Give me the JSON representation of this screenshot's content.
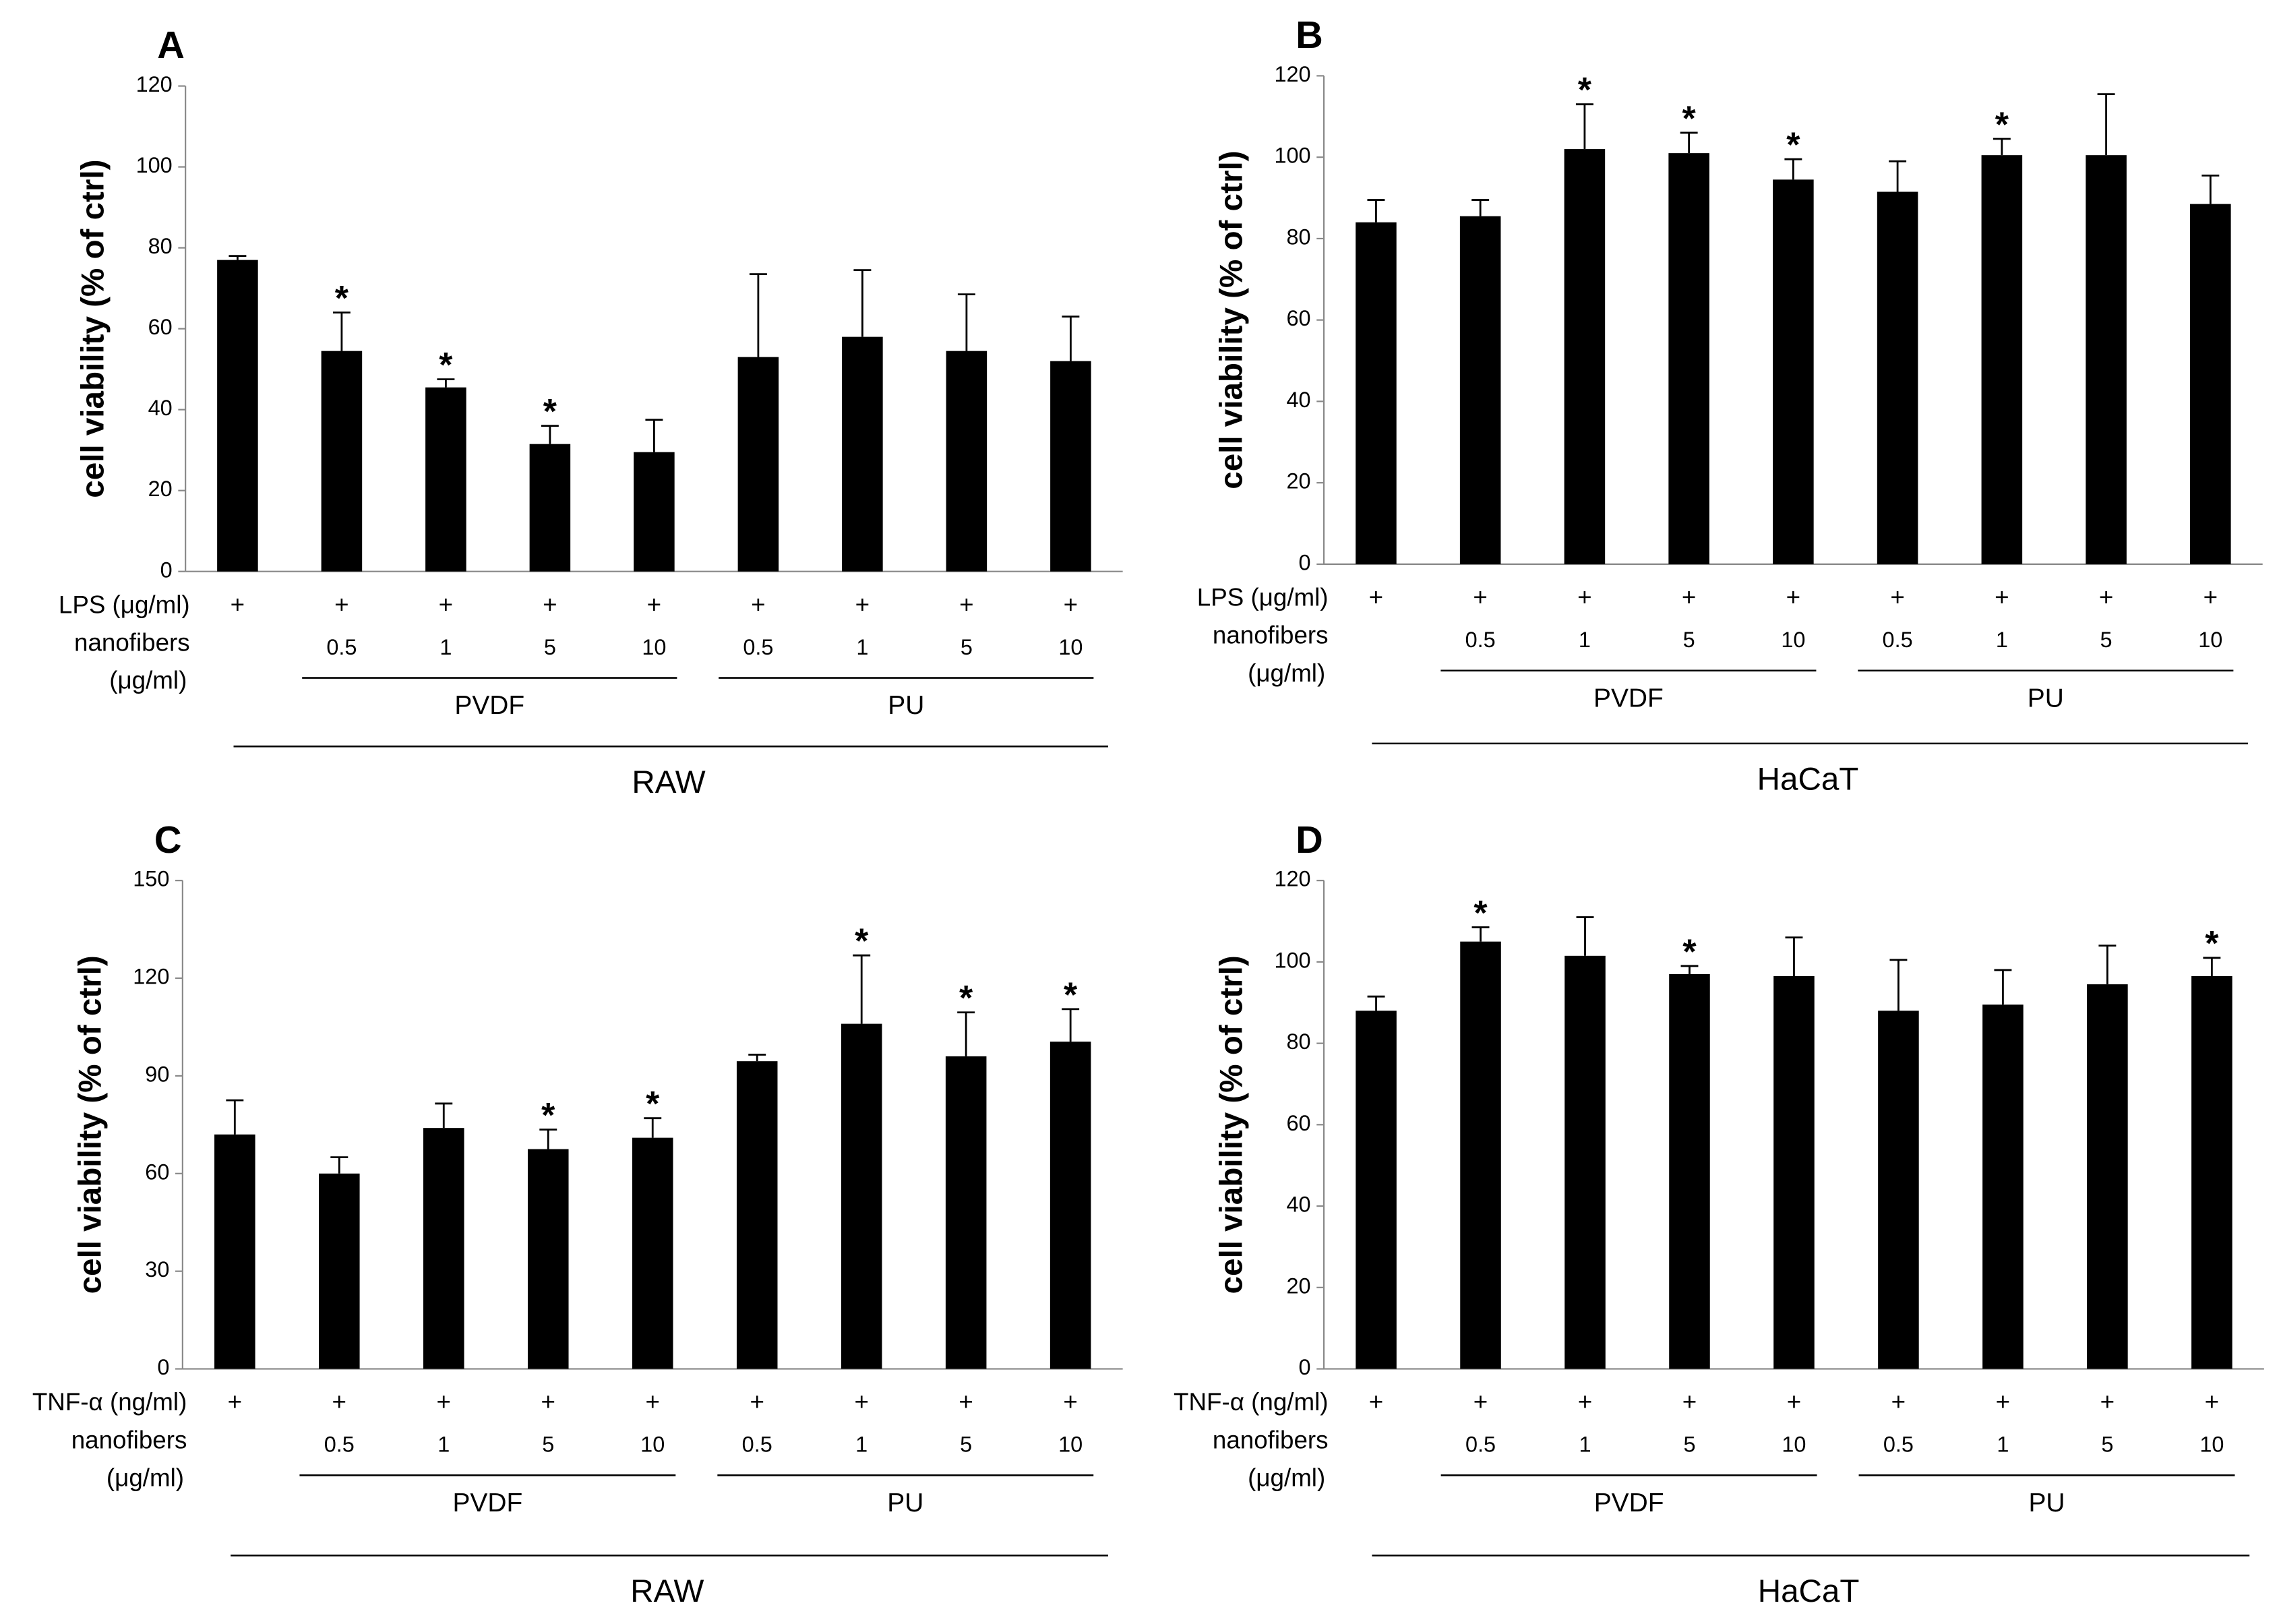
{
  "chart_data": [
    {
      "type": "bar",
      "panel": "A",
      "ylabel": "cell viability  (% of ctrl)",
      "ylim": [
        0,
        120
      ],
      "yticks": [
        0,
        20,
        40,
        60,
        80,
        100,
        120
      ],
      "color": "#000000",
      "treatment_label": "LPS (μg/ml)",
      "fiber_label": "nanofibers",
      "fiber_unit": "(μg/ml)",
      "treatment": [
        "+",
        "+",
        "+",
        "+",
        "+",
        "+",
        "+",
        "+",
        "+"
      ],
      "categories": [
        null,
        "0.5",
        "1",
        "5",
        "10",
        "0.5",
        "1",
        "5",
        "10"
      ],
      "group": [
        null,
        "PVDF",
        "PVDF",
        "PVDF",
        "PVDF",
        "PU",
        "PU",
        "PU",
        "PU"
      ],
      "cell_line": "RAW",
      "values": [
        77,
        54.5,
        45.5,
        31.5,
        29.5,
        53,
        58,
        54.5,
        52
      ],
      "errors": [
        1,
        9.5,
        2,
        4.5,
        8,
        20.5,
        16.5,
        14,
        11
      ],
      "markers": [
        null,
        "*",
        "*",
        "*",
        null,
        null,
        null,
        null,
        null
      ]
    },
    {
      "type": "bar",
      "panel": "B",
      "ylabel": "cell viability  (% of ctrl)",
      "ylim": [
        0,
        120
      ],
      "yticks": [
        0,
        20,
        40,
        60,
        80,
        100,
        120
      ],
      "color": "#000000",
      "treatment_label": "LPS (μg/ml)",
      "fiber_label": "nanofibers",
      "fiber_unit": "(μg/ml)",
      "treatment": [
        "+",
        "+",
        "+",
        "+",
        "+",
        "+",
        "+",
        "+",
        "+"
      ],
      "categories": [
        null,
        "0.5",
        "1",
        "5",
        "10",
        "0.5",
        "1",
        "5",
        "10"
      ],
      "group": [
        null,
        "PVDF",
        "PVDF",
        "PVDF",
        "PVDF",
        "PU",
        "PU",
        "PU",
        "PU"
      ],
      "cell_line": "HaCaT",
      "values": [
        84,
        85.5,
        102,
        101,
        94.5,
        91.5,
        100.5,
        100.5,
        88.5
      ],
      "errors": [
        5.5,
        4,
        11,
        5,
        5,
        7.5,
        4,
        15,
        7
      ],
      "markers": [
        null,
        null,
        "*",
        "*",
        "*",
        null,
        "*",
        null,
        null
      ]
    },
    {
      "type": "bar",
      "panel": "C",
      "ylabel": "cell viability  (% of ctrl)",
      "ylim": [
        0,
        150
      ],
      "yticks": [
        0,
        30,
        60,
        90,
        120,
        150
      ],
      "color": "#000000",
      "treatment_label": "TNF-α (ng/ml)",
      "fiber_label": "nanofibers",
      "fiber_unit": "(μg/ml)",
      "treatment": [
        "+",
        "+",
        "+",
        "+",
        "+",
        "+",
        "+",
        "+",
        "+"
      ],
      "categories": [
        null,
        "0.5",
        "1",
        "5",
        "10",
        "0.5",
        "1",
        "5",
        "10"
      ],
      "group": [
        null,
        "PVDF",
        "PVDF",
        "PVDF",
        "PVDF",
        "PU",
        "PU",
        "PU",
        "PU"
      ],
      "cell_line": "RAW",
      "values": [
        72,
        60,
        74,
        67.5,
        71,
        94.5,
        106,
        96,
        100.5
      ],
      "errors": [
        10.5,
        5,
        7.5,
        6,
        6,
        2,
        21,
        13.5,
        10
      ],
      "markers": [
        null,
        null,
        null,
        "*",
        "*",
        null,
        "*",
        "*",
        "*"
      ]
    },
    {
      "type": "bar",
      "panel": "D",
      "ylabel": "cell viability  (% of ctrl)",
      "ylim": [
        0,
        120
      ],
      "yticks": [
        0,
        20,
        40,
        60,
        80,
        100,
        120
      ],
      "color": "#000000",
      "treatment_label": "TNF-α (ng/ml)",
      "fiber_label": "nanofibers",
      "fiber_unit": "(μg/ml)",
      "treatment": [
        "+",
        "+",
        "+",
        "+",
        "+",
        "+",
        "+",
        "+",
        "+"
      ],
      "categories": [
        null,
        "0.5",
        "1",
        "5",
        "10",
        "0.5",
        "1",
        "5",
        "10"
      ],
      "group": [
        null,
        "PVDF",
        "PVDF",
        "PVDF",
        "PVDF",
        "PU",
        "PU",
        "PU",
        "PU"
      ],
      "cell_line": "HaCaT",
      "values": [
        88,
        105,
        101.5,
        97,
        96.5,
        88,
        89.5,
        94.5,
        96.5
      ],
      "errors": [
        3.5,
        3.5,
        9.5,
        2,
        9.5,
        12.5,
        8.5,
        9.5,
        4.5
      ],
      "markers": [
        null,
        "*",
        null,
        "*",
        null,
        null,
        null,
        null,
        "*"
      ]
    }
  ]
}
